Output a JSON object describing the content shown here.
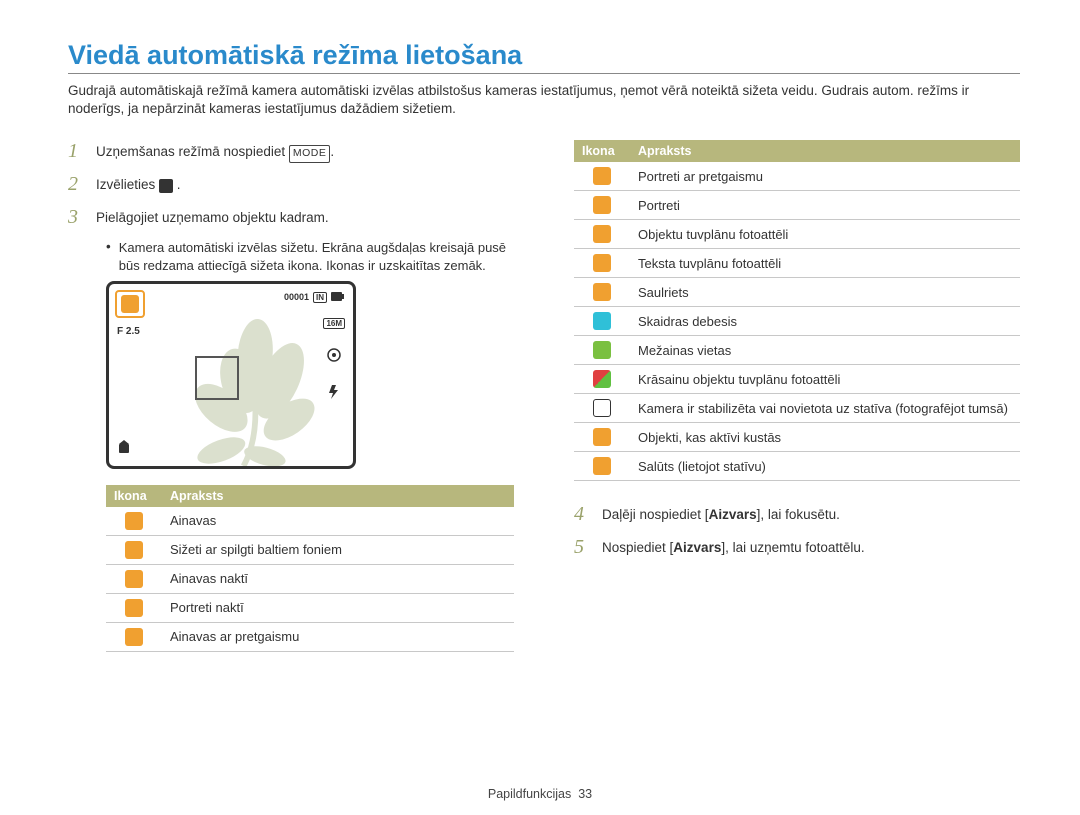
{
  "title": "Viedā automātiskā režīma lietošana",
  "intro": "Gudrajā automātiskajā režīmā kamera automātiski izvēlas atbilstošus kameras iestatījumus, ņemot vērā noteiktā sižeta veidu. Gudrais autom. režīms ir noderīgs, ja nepārzināt kameras iestatījumus dažādiem sižetiem.",
  "steps": {
    "s1_pre": "Uzņemšanas režīmā nospiediet ",
    "s1_btn": "MODE",
    "s1_post": ".",
    "s2": "Izvēlieties ",
    "s2_post": ".",
    "s3": "Pielāgojiet uzņemamo objektu kadram.",
    "s3_bullet": "Kamera automātiski izvēlas sižetu. Ekrāna augšdaļas kreisajā pusē būs redzama attiecīgā sižeta ikona. Ikonas ir uzskaitītas zemāk.",
    "s4_pre": "Daļēji nospiediet [",
    "s4_btn": "Aizvars",
    "s4_post": "], lai fokusētu.",
    "s5_pre": "Nospiediet [",
    "s5_btn": "Aizvars",
    "s5_post": "], lai uzņemtu fotoattēlu."
  },
  "lcd": {
    "f": "F 2.5",
    "counter": "00001",
    "in": "IN",
    "mp": "16M"
  },
  "table_headers": {
    "icon": "Ikona",
    "desc": "Apraksts"
  },
  "table_left": [
    {
      "bg": "ic-orange",
      "desc": "Ainavas"
    },
    {
      "bg": "ic-orange",
      "desc": "Sižeti ar spilgti baltiem foniem"
    },
    {
      "bg": "ic-orange",
      "desc": "Ainavas naktī"
    },
    {
      "bg": "ic-orange",
      "desc": "Portreti naktī"
    },
    {
      "bg": "ic-orange",
      "desc": "Ainavas ar pretgaismu"
    }
  ],
  "table_right": [
    {
      "bg": "ic-orange",
      "desc": "Portreti ar pretgaismu"
    },
    {
      "bg": "ic-orange",
      "desc": "Portreti"
    },
    {
      "bg": "ic-orange",
      "desc": "Objektu tuvplānu fotoattēli"
    },
    {
      "bg": "ic-orange",
      "desc": "Teksta tuvplānu fotoattēli"
    },
    {
      "bg": "ic-orange",
      "desc": "Saulriets"
    },
    {
      "bg": "ic-cyan",
      "desc": "Skaidras debesis"
    },
    {
      "bg": "ic-green",
      "desc": "Mežainas vietas"
    },
    {
      "bg": "ic-multi",
      "desc": "Krāsainu objektu tuvplānu fotoattēli"
    },
    {
      "bg": "ic-white",
      "desc": "Kamera ir stabilizēta vai novietota uz statīva (fotografējot tumsā)"
    },
    {
      "bg": "ic-orange",
      "desc": "Objekti, kas aktīvi kustās"
    },
    {
      "bg": "ic-orange",
      "desc": "Salūts (lietojot statīvu)"
    }
  ],
  "footer": {
    "section": "Papildfunkcijas",
    "page": "33"
  },
  "colors": {
    "title": "#2a8acb",
    "step_num": "#9aa26b",
    "table_header_bg": "#b7b77d",
    "icon_orange": "#f0a030",
    "icon_cyan": "#2fc0d8",
    "icon_green": "#7ac040"
  }
}
